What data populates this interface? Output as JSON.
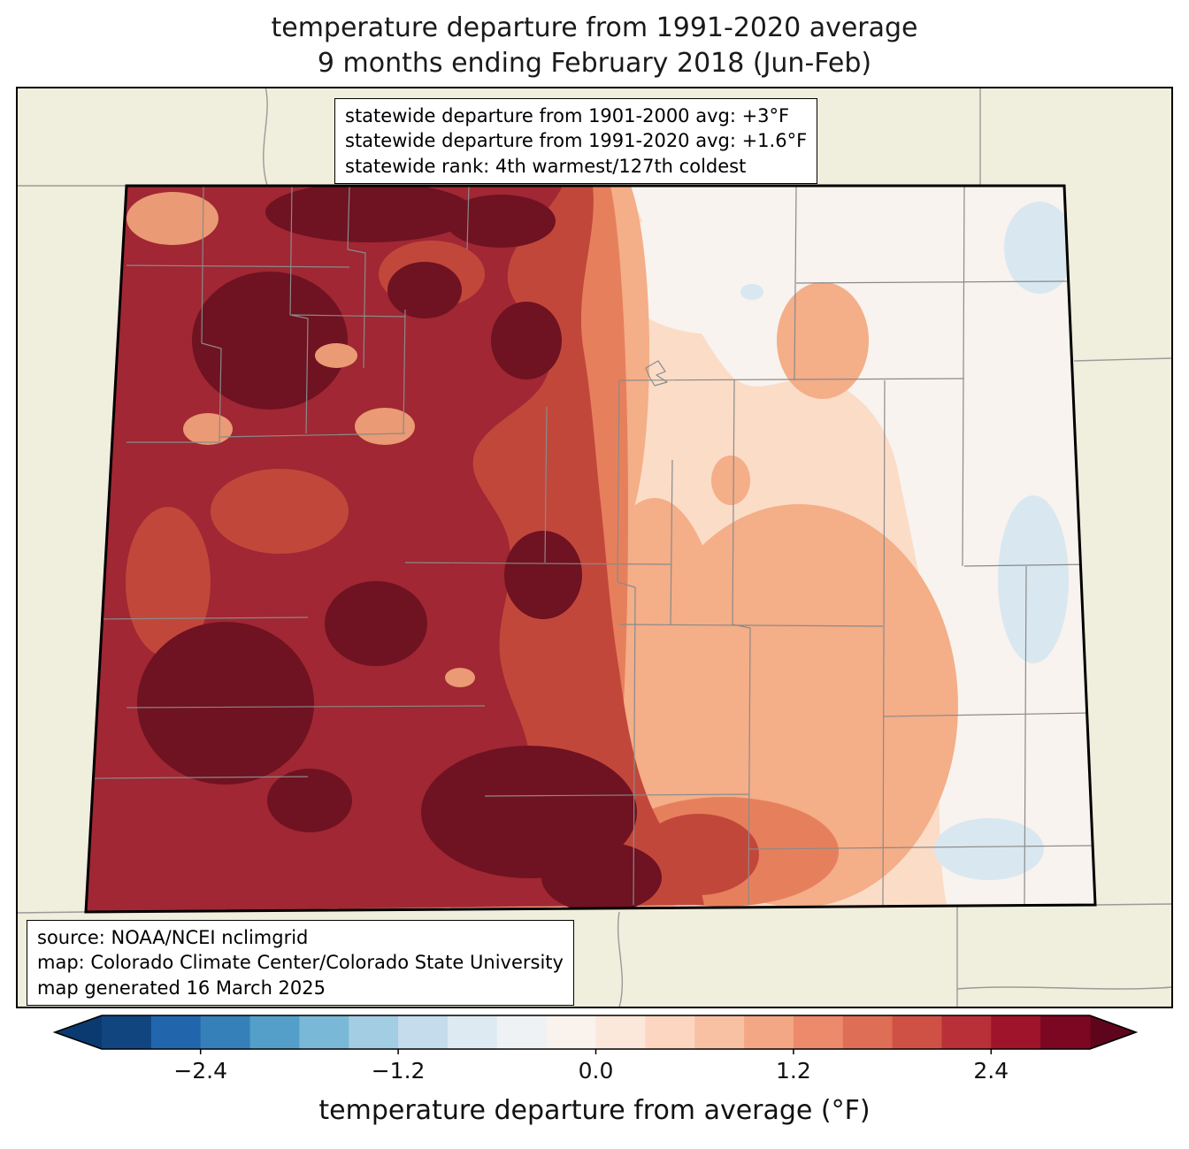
{
  "title": {
    "line1": "temperature departure from 1991-2020 average",
    "line2": "9 months ending February 2018 (Jun-Feb)"
  },
  "stats_box": {
    "lines": [
      "statewide departure from 1901-2000 avg: +3°F",
      "statewide departure from 1991-2020 avg: +1.6°F",
      "statewide rank: 4th warmest/127th coldest"
    ]
  },
  "source_box": {
    "lines": [
      "source: NOAA/NCEI nclimgrid",
      "map: Colorado Climate Center/Colorado State University",
      "map generated 16 March 2025"
    ]
  },
  "colorbar": {
    "label": "temperature departure from average (°F)",
    "range": [
      -3,
      3
    ],
    "segment_step": 0.3,
    "tick_labels": [
      "−2.4",
      "−1.2",
      "0.0",
      "1.2",
      "2.4"
    ],
    "tick_values": [
      -2.4,
      -1.2,
      0.0,
      1.2,
      2.4
    ],
    "segment_colors": [
      "#11457f",
      "#2166ac",
      "#3580b9",
      "#539fc9",
      "#7ab8d8",
      "#a2cde3",
      "#c5dcec",
      "#ddeaf2",
      "#eef2f5",
      "#f9f2ed",
      "#fbe8db",
      "#fcd6c0",
      "#f9c1a3",
      "#f4a784",
      "#ec8a6b",
      "#de6e55",
      "#cf5145",
      "#ba3038",
      "#9f142a",
      "#7c0722"
    ],
    "arrow_left_color": "#0a3a70",
    "arrow_right_color": "#5e051c"
  },
  "map": {
    "palette": {
      "background": "#f0eedc",
      "state_base": "#fbdcc7",
      "white_zone": "#f8f3ee",
      "pale_blue": "#d9e7f0",
      "salmon": "#f4ae88",
      "mid_orange": "#e6805c",
      "red": "#c2473b",
      "dark_red": "#a02733",
      "maroon": "#6f1221",
      "light_spot": "#ea9a74",
      "county_line": "#8a8a8a",
      "context_line": "#9a9a9a",
      "state_border": "#000000",
      "frame": "#000000"
    }
  }
}
